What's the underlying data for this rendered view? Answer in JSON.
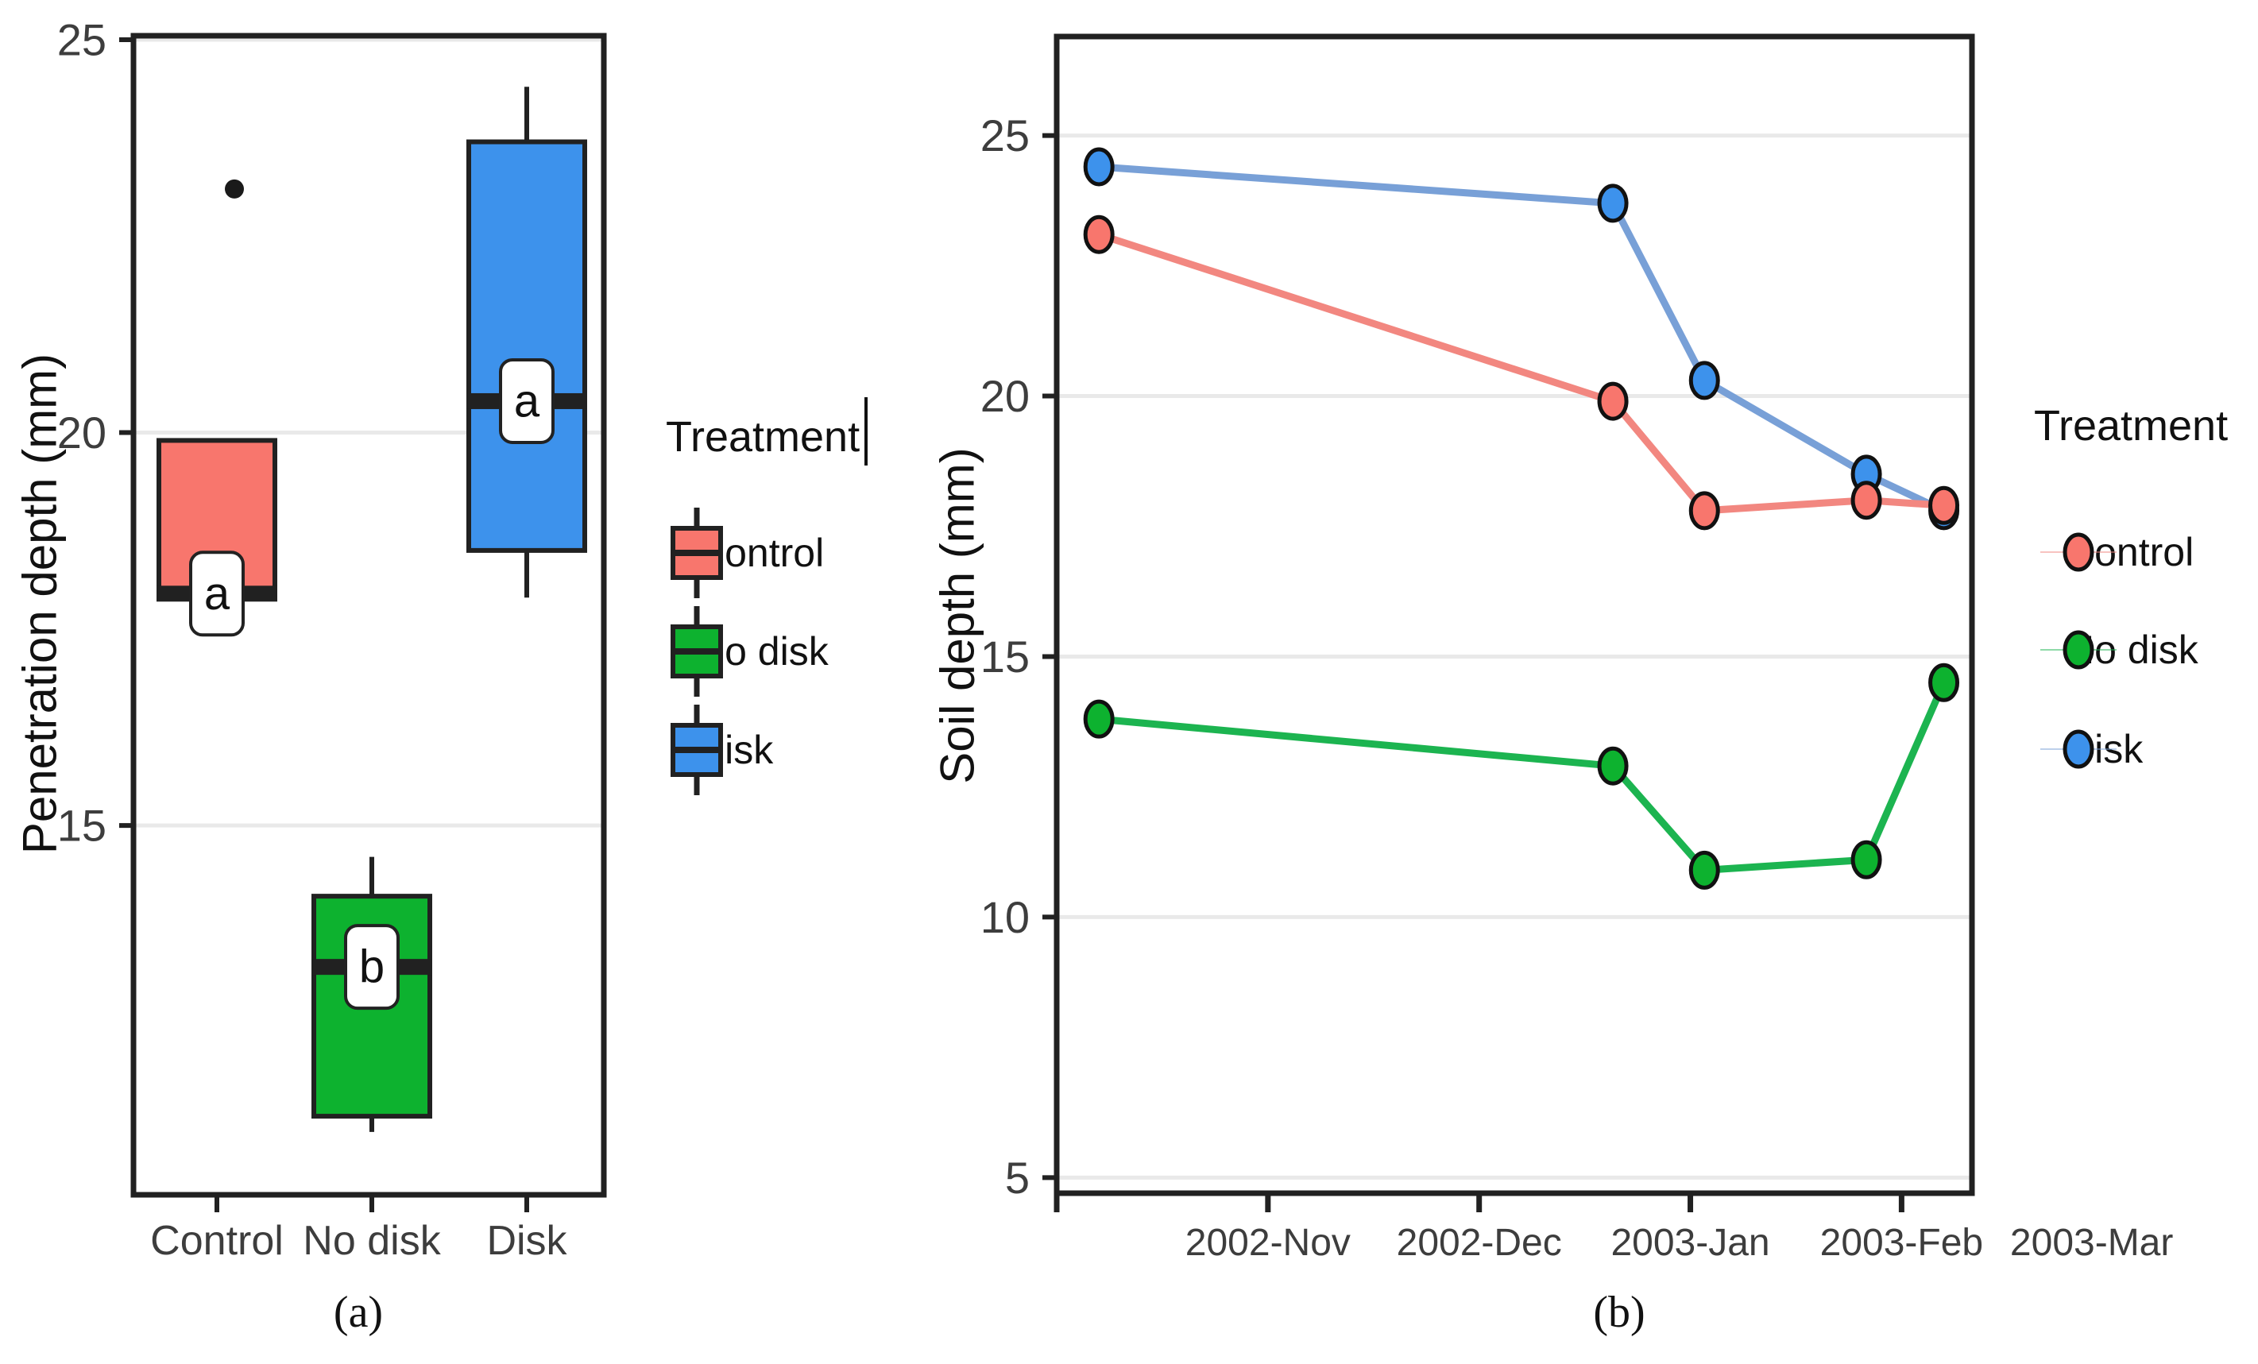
{
  "figure": {
    "caption_a": "(a)",
    "caption_b": "(b)"
  },
  "colors": {
    "control": "#F8766D",
    "no_disk": "#0DB22F",
    "disk": "#3D92EC",
    "control_line": "#F28780",
    "no_disk_line": "#1CB450",
    "disk_line": "#78A0D7",
    "frame": "#212121",
    "grid": "#E9E9E9",
    "tick_label": "#3d3d3d",
    "axis_title": "#111111",
    "marker_stroke": "#111111",
    "sig_fill": "#ffffff",
    "sig_stroke": "#222222",
    "outlier": "#1a1a1a"
  },
  "chart_data": [
    {
      "type": "boxplot",
      "panel": "a",
      "ylabel": "Penetration depth (mm)",
      "caption": "(a)",
      "ylim": [
        10.3,
        25.05
      ],
      "yticks": [
        15,
        20,
        25
      ],
      "grid": "horizontal-major-only",
      "categories": [
        "Control",
        "No disk",
        "Disk"
      ],
      "boxes": [
        {
          "category": "Control",
          "whisker_low": 17.9,
          "q1": 17.9,
          "median": 17.95,
          "q3": 19.9,
          "whisker_high": 19.9,
          "outliers": [
            23.1
          ],
          "sig_label": "a",
          "color": "#F8766D"
        },
        {
          "category": "No disk",
          "whisker_low": 11.1,
          "q1": 11.3,
          "median": 13.2,
          "q3": 14.1,
          "whisker_high": 14.6,
          "outliers": [],
          "sig_label": "b",
          "color": "#0DB22F"
        },
        {
          "category": "Disk",
          "whisker_low": 17.9,
          "q1": 18.5,
          "median": 20.4,
          "q3": 23.7,
          "whisker_high": 24.4,
          "outliers": [],
          "sig_label": "a",
          "color": "#3D92EC"
        }
      ],
      "legend": {
        "title": "Treatment",
        "text_cursor_after_title": true,
        "items": [
          {
            "label": "Control",
            "color": "#F8766D"
          },
          {
            "label": "No disk",
            "color": "#0DB22F"
          },
          {
            "label": "Disk",
            "color": "#3D92EC"
          }
        ]
      }
    },
    {
      "type": "line",
      "panel": "b",
      "ylabel": "Soil depth (mm)",
      "caption": "(b)",
      "ylim": [
        4.7,
        26.9
      ],
      "yticks": [
        5,
        10,
        15,
        20,
        25
      ],
      "grid": "horizontal-major-only",
      "x_unit": "days since 2002-11-01 (approx, read from axis)",
      "xlim": [
        -30,
        100
      ],
      "xticks": [
        {
          "day": -30,
          "label": "",
          "tick": true
        },
        {
          "day": 0,
          "label": "2002-Nov",
          "tick": true
        },
        {
          "day": 30,
          "label": "2002-Dec",
          "tick": true
        },
        {
          "day": 60,
          "label": "2003-Jan",
          "tick": true
        },
        {
          "day": 90,
          "label": "2003-Feb",
          "tick": true
        },
        {
          "day": 117,
          "label": "2003-Mar",
          "tick": false
        }
      ],
      "x_days": [
        -24,
        49,
        62,
        85,
        96
      ],
      "dates_approx": [
        "2002-10-08",
        "2002-12-19",
        "2003-01-02",
        "2003-01-24",
        "2003-02-04"
      ],
      "series": [
        {
          "name": "No disk",
          "values": [
            13.8,
            12.9,
            10.9,
            11.1,
            14.5
          ],
          "color": "#0DB22F",
          "line_color": "#1CB450"
        },
        {
          "name": "Disk",
          "values": [
            24.4,
            23.7,
            20.3,
            18.5,
            17.8
          ],
          "color": "#3D92EC",
          "line_color": "#78A0D7",
          "note": "last point hidden behind Control point"
        },
        {
          "name": "Control",
          "values": [
            23.1,
            19.9,
            17.8,
            18.0,
            17.9
          ],
          "color": "#F8766D",
          "line_color": "#F28780"
        }
      ],
      "legend": {
        "title": "Treatment",
        "items": [
          {
            "label": "Control",
            "color": "#F8766D",
            "line_color": "#F28780"
          },
          {
            "label": "No disk",
            "color": "#0DB22F",
            "line_color": "#1CB450"
          },
          {
            "label": "Disk",
            "color": "#3D92EC",
            "line_color": "#78A0D7"
          }
        ]
      }
    }
  ]
}
